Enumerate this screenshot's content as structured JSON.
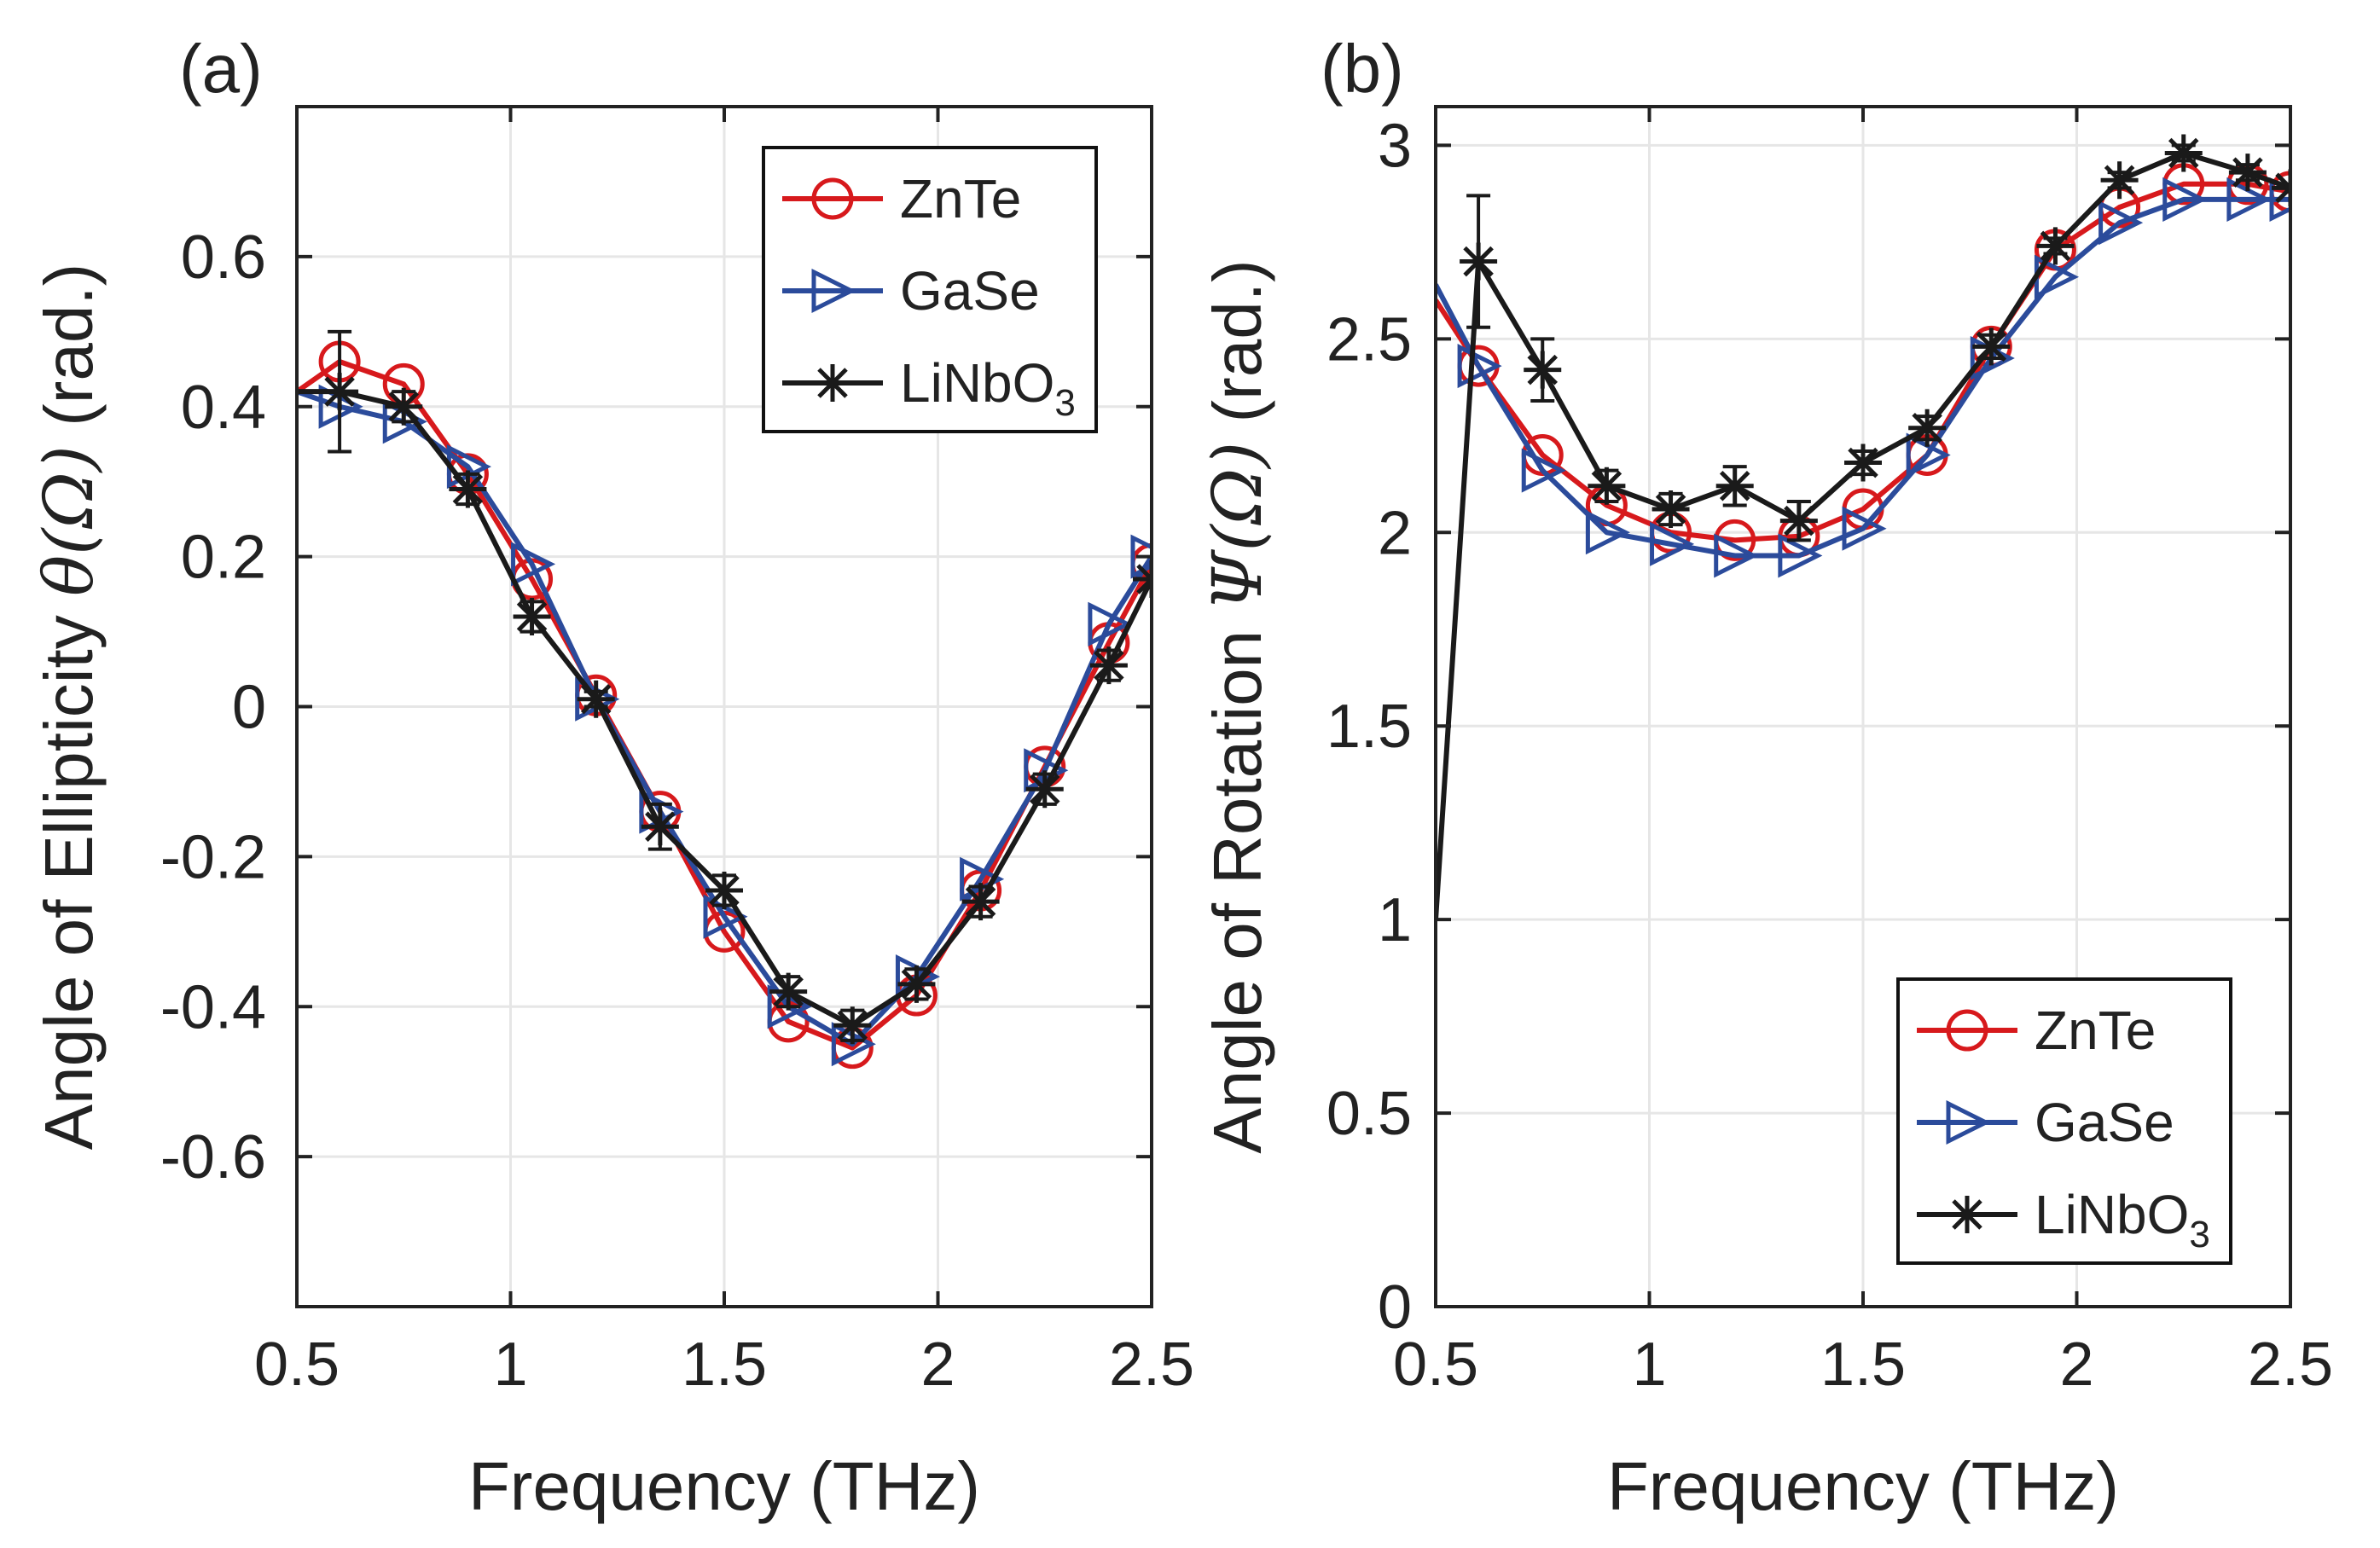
{
  "colors": {
    "ZnTe": "#d7191c",
    "GaSe": "#2b4b9b",
    "LiNbO3": "#1a1a1a",
    "grid": "#e6e6e6",
    "axis": "#222222"
  },
  "chart_data": [
    {
      "type": "line",
      "panel": "(a)",
      "xlabel": "Frequency (THz)",
      "ylabel_prefix": "Angle of Ellipticity ",
      "ylabel_symbol": "θ(Ω)",
      "ylabel_suffix": " (rad.)",
      "xlim": [
        0.5,
        2.5
      ],
      "ylim": [
        -0.8,
        0.8
      ],
      "xticks": [
        0.5,
        1,
        1.5,
        2,
        2.5
      ],
      "xtick_labels": [
        "0.5",
        "1",
        "1.5",
        "2",
        "2.5"
      ],
      "yticks": [
        -0.6,
        -0.4,
        -0.2,
        0,
        0.2,
        0.4,
        0.6
      ],
      "ytick_labels": [
        "-0.6",
        "-0.4",
        "-0.2",
        "0",
        "0.2",
        "0.4",
        "0.6"
      ],
      "grid": true,
      "legend_position": "top-right",
      "series": [
        {
          "name": "ZnTe",
          "legend_main": "ZnTe",
          "legend_sub": "",
          "marker": "circle",
          "x": [
            0.5,
            0.6,
            0.75,
            0.9,
            1.05,
            1.2,
            1.35,
            1.5,
            1.65,
            1.8,
            1.95,
            2.1,
            2.25,
            2.4,
            2.5
          ],
          "y": [
            0.42,
            0.46,
            0.43,
            0.31,
            0.17,
            0.015,
            -0.14,
            -0.3,
            -0.42,
            -0.455,
            -0.385,
            -0.245,
            -0.08,
            0.085,
            0.19
          ],
          "marker_from": 1
        },
        {
          "name": "GaSe",
          "legend_main": "GaSe",
          "legend_sub": "",
          "marker": "triangle-right",
          "x": [
            0.5,
            0.6,
            0.75,
            0.9,
            1.05,
            1.2,
            1.35,
            1.5,
            1.65,
            1.8,
            1.95,
            2.1,
            2.25,
            2.4,
            2.5
          ],
          "y": [
            0.42,
            0.4,
            0.38,
            0.32,
            0.19,
            0.01,
            -0.14,
            -0.28,
            -0.4,
            -0.45,
            -0.36,
            -0.23,
            -0.085,
            0.11,
            0.2
          ],
          "marker_from": 1
        },
        {
          "name": "LiNbO3",
          "legend_main": "LiNbO",
          "legend_sub": "3",
          "marker": "asterisk",
          "x": [
            0.5,
            0.6,
            0.75,
            0.9,
            1.05,
            1.2,
            1.35,
            1.5,
            1.65,
            1.8,
            1.95,
            2.1,
            2.25,
            2.4,
            2.5
          ],
          "y": [
            0.42,
            0.42,
            0.4,
            0.29,
            0.12,
            0.01,
            -0.16,
            -0.245,
            -0.38,
            -0.425,
            -0.37,
            -0.26,
            -0.11,
            0.055,
            0.17
          ],
          "err": [
            0,
            0.08,
            0.02,
            0.02,
            0.02,
            0.01,
            0.03,
            0.02,
            0.02,
            0.02,
            0.02,
            0.02,
            0.02,
            0.02,
            0
          ],
          "marker_from": 1
        }
      ]
    },
    {
      "type": "line",
      "panel": "(b)",
      "xlabel": "Frequency (THz)",
      "ylabel_prefix": "Angle of Rotation ",
      "ylabel_symbol": "Ψ(Ω)",
      "ylabel_suffix": " (rad.)",
      "xlim": [
        0.5,
        2.5
      ],
      "ylim": [
        0,
        3.1
      ],
      "xticks": [
        0.5,
        1,
        1.5,
        2,
        2.5
      ],
      "xtick_labels": [
        "0.5",
        "1",
        "1.5",
        "2",
        "2.5"
      ],
      "yticks": [
        0,
        0.5,
        1,
        1.5,
        2,
        2.5,
        3
      ],
      "ytick_labels": [
        "0",
        "0.5",
        "1",
        "1.5",
        "2",
        "2.5",
        "3"
      ],
      "grid": true,
      "legend_position": "bottom-right",
      "series": [
        {
          "name": "ZnTe",
          "legend_main": "ZnTe",
          "legend_sub": "",
          "marker": "circle",
          "x": [
            0.5,
            0.6,
            0.75,
            0.9,
            1.05,
            1.2,
            1.35,
            1.5,
            1.65,
            1.8,
            1.95,
            2.1,
            2.25,
            2.4,
            2.5
          ],
          "y": [
            2.6,
            2.43,
            2.2,
            2.07,
            2.0,
            1.98,
            1.99,
            2.06,
            2.2,
            2.48,
            2.73,
            2.84,
            2.9,
            2.9,
            2.88
          ],
          "marker_from": 1
        },
        {
          "name": "GaSe",
          "legend_main": "GaSe",
          "legend_sub": "",
          "marker": "triangle-right",
          "x": [
            0.5,
            0.6,
            0.75,
            0.9,
            1.05,
            1.2,
            1.35,
            1.5,
            1.65,
            1.8,
            1.95,
            2.1,
            2.25,
            2.4,
            2.5
          ],
          "y": [
            2.64,
            2.43,
            2.16,
            2.0,
            1.97,
            1.94,
            1.94,
            2.01,
            2.2,
            2.45,
            2.66,
            2.8,
            2.86,
            2.86,
            2.86
          ],
          "marker_from": 1
        },
        {
          "name": "LiNbO3",
          "legend_main": "LiNbO",
          "legend_sub": "3",
          "marker": "asterisk",
          "x": [
            0.5,
            0.6,
            0.75,
            0.9,
            1.05,
            1.2,
            1.35,
            1.5,
            1.65,
            1.8,
            1.95,
            2.1,
            2.25,
            2.4,
            2.5
          ],
          "y": [
            1.0,
            2.7,
            2.42,
            2.12,
            2.06,
            2.12,
            2.03,
            2.18,
            2.27,
            2.48,
            2.74,
            2.91,
            2.98,
            2.93,
            2.89
          ],
          "err": [
            0,
            0.17,
            0.08,
            0.04,
            0.04,
            0.05,
            0.05,
            0.03,
            0.03,
            0.03,
            0.02,
            0.02,
            0.02,
            0.02,
            0
          ],
          "marker_from": 1
        }
      ]
    }
  ]
}
